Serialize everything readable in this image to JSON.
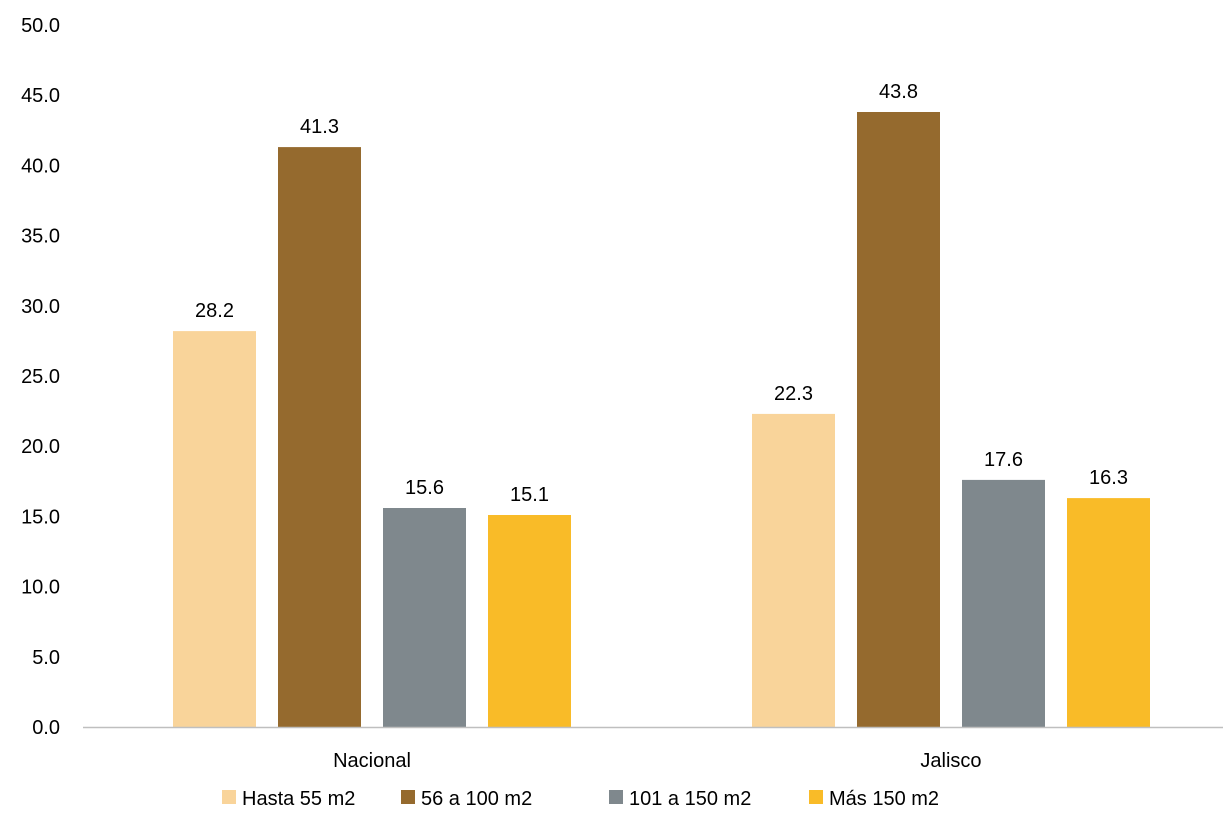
{
  "chart_data": {
    "type": "bar",
    "title": "",
    "xlabel": "",
    "ylabel": "",
    "categories": [
      "Nacional",
      "Jalisco"
    ],
    "series": [
      {
        "name": "Hasta 55 m2",
        "color": "#F9D49A",
        "values": [
          28.2,
          22.3
        ]
      },
      {
        "name": "56 a 100 m2",
        "color": "#956A2E",
        "values": [
          41.3,
          43.8
        ]
      },
      {
        "name": "101 a 150 m2",
        "color": "#7F888D",
        "values": [
          15.6,
          17.6
        ]
      },
      {
        "name": "Más 150 m2",
        "color": "#F9BB28",
        "values": [
          15.1,
          16.3
        ]
      }
    ],
    "ylim": [
      0,
      50
    ],
    "yticks": [
      "0.0",
      "5.0",
      "10.0",
      "15.0",
      "20.0",
      "25.0",
      "30.0",
      "35.0",
      "40.0",
      "45.0",
      "50.0"
    ],
    "grid": false,
    "legend_position": "bottom",
    "data_labels": true
  }
}
